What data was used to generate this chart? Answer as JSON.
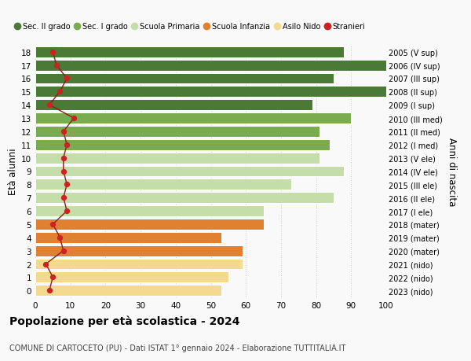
{
  "ages": [
    0,
    1,
    2,
    3,
    4,
    5,
    6,
    7,
    8,
    9,
    10,
    11,
    12,
    13,
    14,
    15,
    16,
    17,
    18
  ],
  "labels_right": [
    "2023 (nido)",
    "2022 (nido)",
    "2021 (nido)",
    "2020 (mater)",
    "2019 (mater)",
    "2018 (mater)",
    "2017 (I ele)",
    "2016 (II ele)",
    "2015 (III ele)",
    "2014 (IV ele)",
    "2013 (V ele)",
    "2012 (I med)",
    "2011 (II med)",
    "2010 (III med)",
    "2009 (I sup)",
    "2008 (II sup)",
    "2007 (III sup)",
    "2006 (IV sup)",
    "2005 (V sup)"
  ],
  "bar_values": [
    53,
    55,
    59,
    59,
    53,
    65,
    65,
    85,
    73,
    88,
    81,
    84,
    81,
    90,
    79,
    100,
    85,
    100,
    88
  ],
  "stranieri_values": [
    4,
    5,
    3,
    8,
    7,
    5,
    9,
    8,
    9,
    8,
    8,
    9,
    8,
    11,
    4,
    7,
    9,
    6,
    5
  ],
  "bar_colors": [
    "#f5d98e",
    "#f5d98e",
    "#f5d98e",
    "#e08030",
    "#e08030",
    "#e08030",
    "#c5dda8",
    "#c5dda8",
    "#c5dda8",
    "#c5dda8",
    "#c5dda8",
    "#7aab50",
    "#7aab50",
    "#7aab50",
    "#4a7a35",
    "#4a7a35",
    "#4a7a35",
    "#4a7a35",
    "#4a7a35"
  ],
  "legend_labels": [
    "Sec. II grado",
    "Sec. I grado",
    "Scuola Primaria",
    "Scuola Infanzia",
    "Asilo Nido",
    "Stranieri"
  ],
  "legend_colors": [
    "#4a7a35",
    "#7aab50",
    "#c5dda8",
    "#e08030",
    "#f5d98e",
    "#cc2222"
  ],
  "ylabel": "Età alunni",
  "ylabel_right": "Anni di nascita",
  "title": "Popolazione per età scolastica - 2024",
  "subtitle": "COMUNE DI CARTOCETO (PU) - Dati ISTAT 1° gennaio 2024 - Elaborazione TUTTITALIA.IT",
  "xlim": [
    0,
    100
  ],
  "bg_color": "#f9f9f9",
  "bar_edge_color": "#ffffff",
  "grid_color": "#cccccc",
  "stranieri_line_color": "#8b1a1a",
  "stranieri_dot_color": "#cc2222"
}
